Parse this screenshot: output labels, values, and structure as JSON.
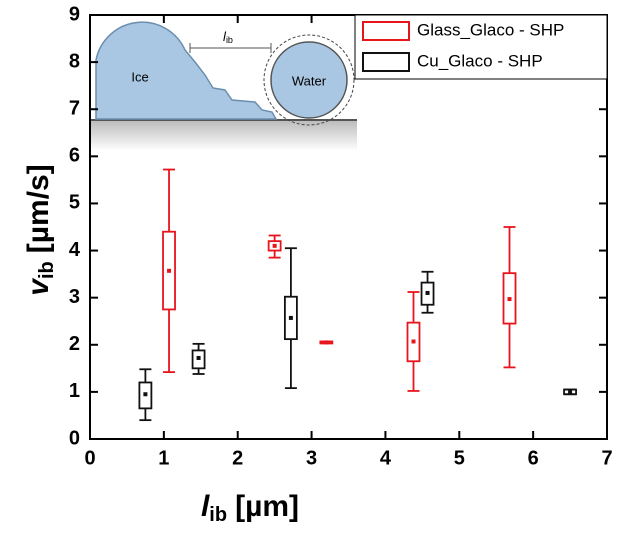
{
  "chart_data": {
    "type": "box",
    "x_label": {
      "symbol": "l",
      "subscript": "ib",
      "unit": "[µm]"
    },
    "y_label": {
      "symbol": "v",
      "subscript": "ib",
      "unit": "[µm/s]"
    },
    "xlim": [
      0,
      7
    ],
    "xticks": [
      0,
      1,
      2,
      3,
      4,
      5,
      6,
      7
    ],
    "ylim": [
      0,
      9
    ],
    "yticks": [
      0,
      1,
      2,
      3,
      4,
      5,
      6,
      7,
      8,
      9
    ],
    "legend": "upper right",
    "inset": {
      "labels": [
        "Ice",
        "Water"
      ],
      "distance_label": {
        "symbol": "l",
        "subscript": "ib"
      }
    },
    "series": [
      {
        "name": "Glass_Glaco - SHP",
        "color": "#e8141c",
        "x": [
          1.07,
          2.5,
          3.2,
          4.38,
          5.68
        ],
        "whisker_low": [
          1.42,
          3.85,
          2.03,
          1.02,
          1.52
        ],
        "q1": [
          2.75,
          4.0,
          2.03,
          1.65,
          2.45
        ],
        "q3": [
          4.4,
          4.2,
          2.07,
          2.47,
          3.52
        ],
        "whisker_high": [
          5.72,
          4.32,
          2.07,
          3.12,
          4.5
        ],
        "mean": [
          3.57,
          4.1,
          2.05,
          2.07,
          2.97
        ]
      },
      {
        "name": "Cu_Glaco - SHP",
        "color": "#111111",
        "x": [
          0.75,
          1.47,
          2.72,
          4.57,
          6.5
        ],
        "whisker_low": [
          0.4,
          1.38,
          1.08,
          2.68,
          0.95
        ],
        "q1": [
          0.65,
          1.5,
          2.12,
          2.85,
          0.95
        ],
        "q3": [
          1.2,
          1.88,
          3.02,
          3.32,
          1.05
        ],
        "whisker_high": [
          1.48,
          2.02,
          4.05,
          3.55,
          1.05
        ],
        "mean": [
          0.95,
          1.72,
          2.57,
          3.1,
          1.0
        ]
      }
    ]
  }
}
